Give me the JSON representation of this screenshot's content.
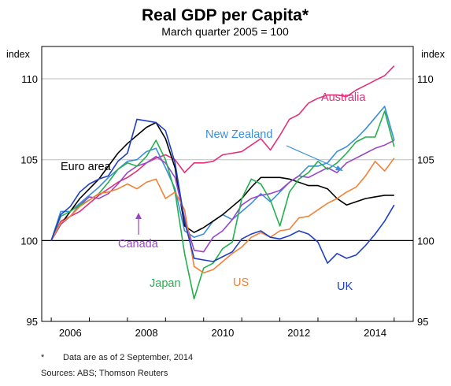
{
  "chart_data": {
    "type": "line",
    "title": "Real GDP per Capita*",
    "subtitle": "March quarter 2005 = 100",
    "ylabel_left": "index",
    "ylabel_right": "index",
    "xlim": [
      2004.75,
      2014.5
    ],
    "ylim": [
      95,
      112
    ],
    "yticks": [
      95,
      100,
      105,
      110
    ],
    "xticks": [
      2006,
      2008,
      2010,
      2012,
      2014
    ],
    "grid": true,
    "footnote_marker": "*",
    "footnote": "Data are as of 2 September, 2014",
    "sources_label": "Sources:",
    "sources": "ABS; Thomson Reuters",
    "x": [
      2005.0,
      2005.25,
      2005.5,
      2005.75,
      2006.0,
      2006.25,
      2006.5,
      2006.75,
      2007.0,
      2007.25,
      2007.5,
      2007.75,
      2008.0,
      2008.25,
      2008.5,
      2008.75,
      2009.0,
      2009.25,
      2009.5,
      2009.75,
      2010.0,
      2010.25,
      2010.5,
      2010.75,
      2011.0,
      2011.25,
      2011.5,
      2011.75,
      2012.0,
      2012.25,
      2012.5,
      2012.75,
      2013.0,
      2013.25,
      2013.5,
      2013.75,
      2014.0
    ],
    "series": [
      {
        "name": "Australia",
        "color": "#e0307a",
        "values": [
          100,
          101.2,
          101.5,
          101.8,
          102.3,
          102.8,
          103.2,
          103.6,
          103.9,
          104.3,
          104.8,
          105.1,
          105.3,
          105.0,
          104.2,
          104.8,
          104.8,
          104.9,
          105.3,
          105.4,
          105.5,
          105.9,
          106.3,
          105.6,
          106.5,
          107.5,
          107.8,
          108.5,
          108.8,
          109.0,
          109.0,
          108.9,
          109.3,
          109.6,
          109.9,
          110.2,
          110.8
        ]
      },
      {
        "name": "New Zealand",
        "color": "#3a8fdc",
        "values": [
          100,
          101.8,
          101.8,
          102.3,
          102.8,
          103.3,
          103.9,
          104.4,
          104.9,
          105.0,
          105.5,
          105.7,
          104.5,
          103.2,
          100.6,
          100.2,
          100.4,
          101.2,
          101.6,
          101.3,
          101.8,
          102.3,
          102.9,
          102.4,
          103.0,
          103.6,
          104.0,
          104.6,
          104.6,
          104.8,
          105.5,
          105.8,
          106.3,
          106.9,
          107.6,
          108.3,
          106.2
        ]
      },
      {
        "name": "Euro area",
        "color": "#000000",
        "values": [
          100,
          101.0,
          101.8,
          102.6,
          103.2,
          103.8,
          104.6,
          105.4,
          106.0,
          106.5,
          107.0,
          107.3,
          106.3,
          104.5,
          100.9,
          100.5,
          100.8,
          101.2,
          101.6,
          102.1,
          102.6,
          103.3,
          103.9,
          103.9,
          103.9,
          103.8,
          103.6,
          103.4,
          103.4,
          103.2,
          102.6,
          102.2,
          102.4,
          102.6,
          102.7,
          102.8,
          102.8
        ]
      },
      {
        "name": "Canada",
        "color": "#9a45c8",
        "values": [
          100,
          101.0,
          101.5,
          102.2,
          102.7,
          102.6,
          102.9,
          103.5,
          104.2,
          104.6,
          104.8,
          105.2,
          104.8,
          103.9,
          101.4,
          99.4,
          99.3,
          100.2,
          100.6,
          101.3,
          102.2,
          102.6,
          102.8,
          102.9,
          103.1,
          103.6,
          104.0,
          103.9,
          104.2,
          104.5,
          104.2,
          104.8,
          105.1,
          105.4,
          105.7,
          105.9,
          106.2
        ]
      },
      {
        "name": "Japan",
        "color": "#23b04e",
        "values": [
          100,
          101.5,
          101.8,
          102.2,
          102.5,
          102.9,
          103.6,
          104.4,
          104.8,
          104.6,
          105.2,
          106.2,
          105.0,
          103.0,
          99.2,
          96.4,
          98.3,
          98.6,
          99.5,
          99.9,
          102.6,
          103.8,
          103.5,
          102.5,
          100.9,
          103.0,
          103.8,
          104.2,
          104.9,
          104.4,
          104.8,
          105.4,
          106.1,
          106.4,
          106.4,
          108.0,
          105.8
        ]
      },
      {
        "name": "US",
        "color": "#f08236",
        "values": [
          100,
          101.1,
          101.5,
          102.1,
          102.5,
          102.9,
          103.0,
          103.2,
          103.5,
          103.2,
          103.6,
          103.8,
          102.6,
          103.0,
          101.9,
          98.4,
          98.0,
          98.2,
          98.7,
          99.2,
          99.6,
          100.2,
          100.5,
          100.2,
          100.6,
          100.7,
          101.4,
          101.5,
          101.9,
          102.3,
          102.6,
          103.0,
          103.3,
          104.0,
          104.9,
          104.3,
          105.1
        ]
      },
      {
        "name": "UK",
        "color": "#1f3fc0",
        "values": [
          100,
          101.6,
          102.1,
          103.0,
          103.5,
          103.8,
          104.0,
          104.9,
          105.4,
          107.5,
          107.4,
          107.3,
          106.8,
          104.8,
          101.2,
          98.9,
          98.8,
          98.7,
          99.0,
          99.3,
          100.1,
          100.4,
          100.6,
          100.2,
          100.1,
          100.3,
          100.6,
          100.4,
          99.9,
          98.6,
          99.2,
          98.9,
          99.1,
          99.7,
          100.4,
          101.2,
          102.2
        ]
      }
    ],
    "labels": {
      "australia": "Australia",
      "new_zealand": "New Zealand",
      "euro_area": "Euro area",
      "canada": "Canada",
      "japan": "Japan",
      "us": "US",
      "uk": "UK"
    }
  }
}
